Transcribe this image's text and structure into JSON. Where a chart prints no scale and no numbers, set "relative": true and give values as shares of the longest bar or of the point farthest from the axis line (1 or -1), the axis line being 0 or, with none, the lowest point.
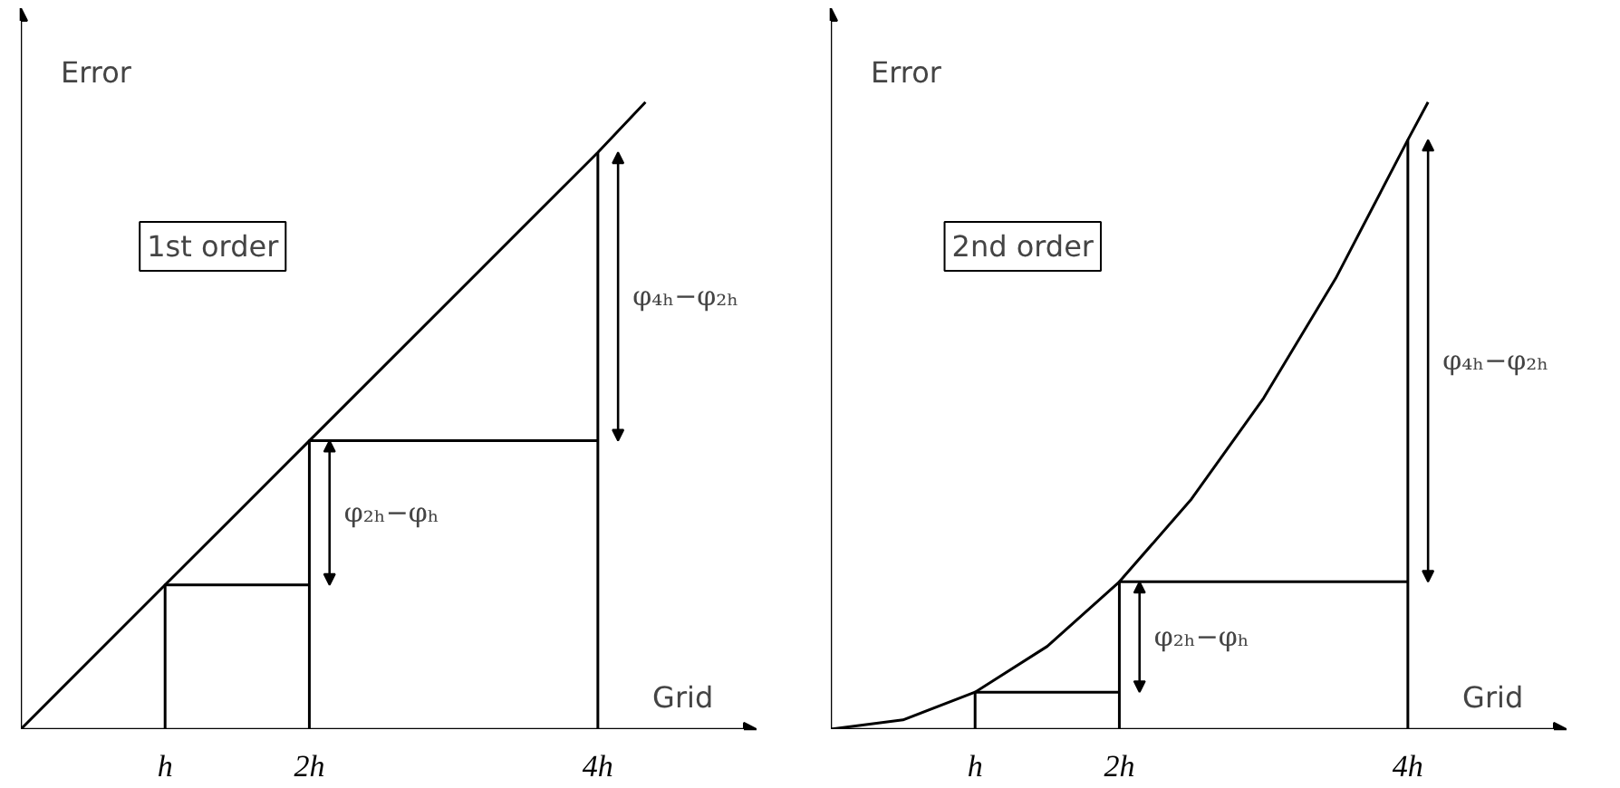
{
  "chart_data": [
    {
      "type": "line",
      "relative": true,
      "xlabel": "Grid",
      "ylabel": "Error",
      "xlim": [
        0,
        5.1
      ],
      "xticks": [
        {
          "value": 1,
          "label": "h"
        },
        {
          "value": 2,
          "label": "2h"
        },
        {
          "value": 4,
          "label": "4h"
        }
      ],
      "series": [
        {
          "color": "#000000",
          "x": [
            0,
            1,
            2,
            4,
            4.33
          ],
          "values": [
            0,
            0.23,
            0.46,
            0.92,
            1
          ]
        },
        {
          "color": "#000000",
          "x": [
            1,
            1,
            2,
            2,
            2,
            4,
            4,
            4
          ],
          "values": [
            0,
            0.23,
            0.23,
            0,
            0.46,
            0.46,
            0,
            0.92
          ]
        }
      ],
      "annotations": [
        "1st order",
        "φ₂ₕ−φₕ",
        "φ₄ₕ−φ₂ₕ"
      ]
    },
    {
      "type": "line",
      "relative": true,
      "xlabel": "Grid",
      "ylabel": "Error",
      "xlim": [
        0,
        5.1
      ],
      "xticks": [
        {
          "value": 1,
          "label": "h"
        },
        {
          "value": 2,
          "label": "2h"
        },
        {
          "value": 4,
          "label": "4h"
        }
      ],
      "series": [
        {
          "color": "#000000",
          "x": [
            0,
            0.5,
            1,
            1.5,
            2,
            2.5,
            3,
            3.5,
            4,
            4.14
          ],
          "values": [
            0,
            0.0147,
            0.059,
            0.132,
            0.235,
            0.367,
            0.528,
            0.719,
            0.94,
            1
          ]
        },
        {
          "color": "#000000",
          "x": [
            1,
            1,
            2,
            2,
            2,
            4,
            4,
            4
          ],
          "values": [
            0,
            0.059,
            0.059,
            0,
            0.235,
            0.235,
            0,
            0.94
          ]
        }
      ],
      "annotations": [
        "2nd order",
        "φ₂ₕ−φₕ",
        "φ₄ₕ−φ₂ₕ"
      ]
    }
  ]
}
